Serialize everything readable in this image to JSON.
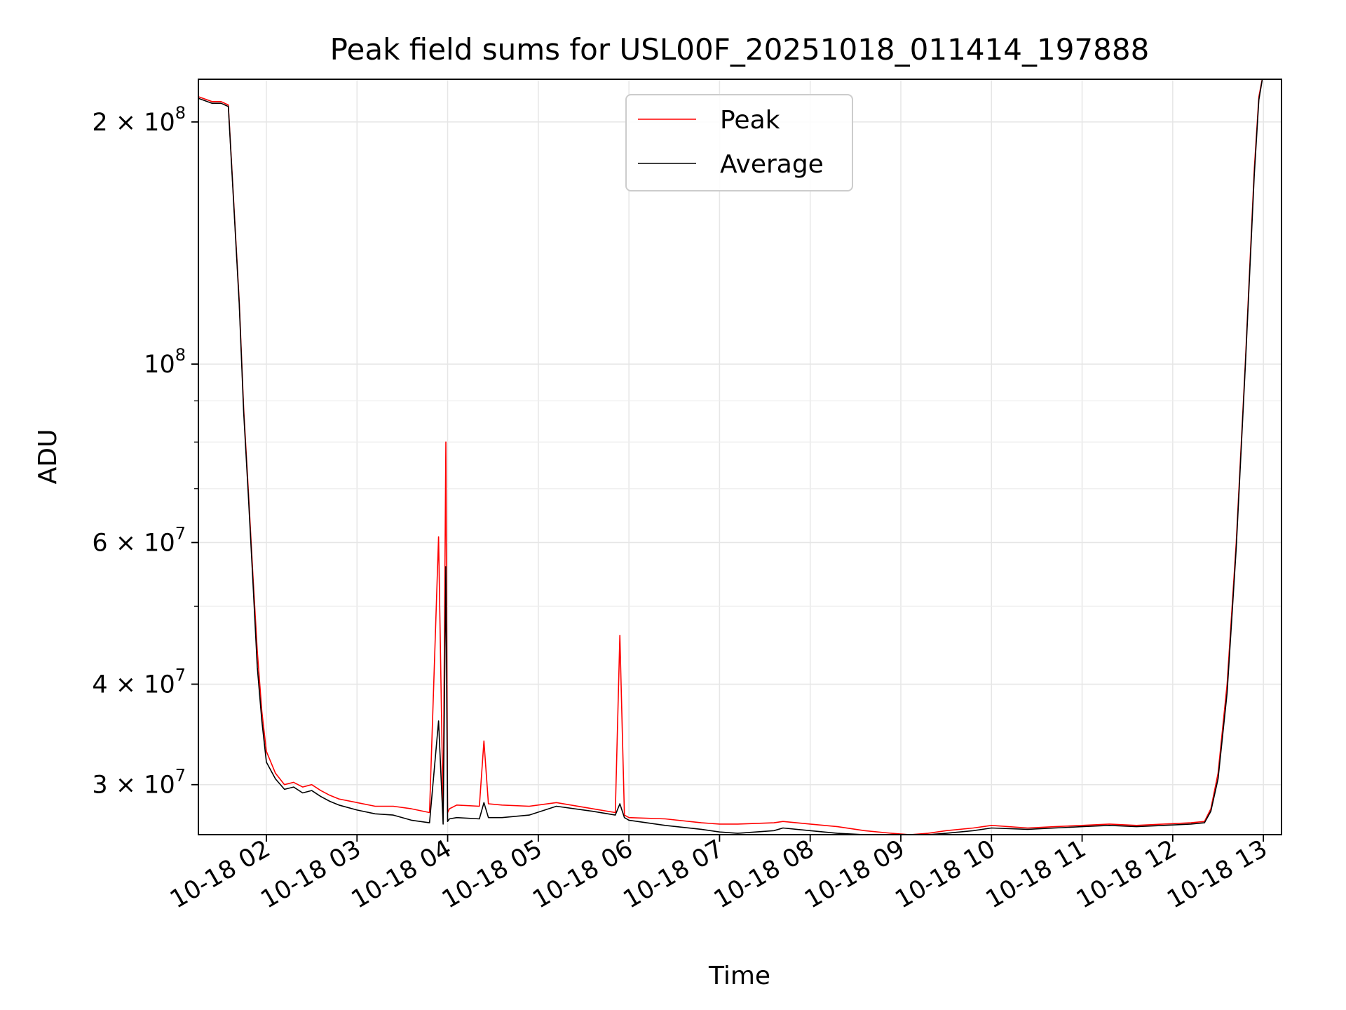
{
  "chart_data": {
    "type": "line",
    "title": "Peak field sums for USL00F_20251018_011414_197888",
    "xlabel": "Time",
    "ylabel": "ADU",
    "yscale": "log",
    "xlim": [
      1.25,
      13.2
    ],
    "ylim": [
      26000000,
      226000000
    ],
    "x_unit": "hours since 2025-10-18 00:00",
    "x_ticks": [
      {
        "value": 2,
        "label": "10-18 02"
      },
      {
        "value": 3,
        "label": "10-18 03"
      },
      {
        "value": 4,
        "label": "10-18 04"
      },
      {
        "value": 5,
        "label": "10-18 05"
      },
      {
        "value": 6,
        "label": "10-18 06"
      },
      {
        "value": 7,
        "label": "10-18 07"
      },
      {
        "value": 8,
        "label": "10-18 08"
      },
      {
        "value": 9,
        "label": "10-18 09"
      },
      {
        "value": 10,
        "label": "10-18 10"
      },
      {
        "value": 11,
        "label": "10-18 11"
      },
      {
        "value": 12,
        "label": "10-18 12"
      },
      {
        "value": 13,
        "label": "10-18 13"
      }
    ],
    "y_ticks": [
      {
        "value": 30000000,
        "base": "3 × 10",
        "exp": "7"
      },
      {
        "value": 40000000,
        "base": "4 × 10",
        "exp": "7"
      },
      {
        "value": 60000000,
        "base": "6 × 10",
        "exp": "7"
      },
      {
        "value": 100000000,
        "base": "10",
        "exp": "8"
      },
      {
        "value": 200000000,
        "base": "2 × 10",
        "exp": "8"
      }
    ],
    "y_minor_ticks": [
      50000000,
      70000000,
      80000000,
      90000000
    ],
    "grid": true,
    "legend_position": "top-center",
    "series": [
      {
        "name": "Peak",
        "color": "#ff0000",
        "x": [
          1.25,
          1.4,
          1.5,
          1.58,
          1.7,
          1.75,
          1.8,
          1.85,
          1.9,
          1.95,
          2.0,
          2.1,
          2.2,
          2.3,
          2.4,
          2.5,
          2.6,
          2.7,
          2.8,
          3.0,
          3.2,
          3.4,
          3.6,
          3.8,
          3.9,
          3.95,
          3.98,
          4.0,
          4.02,
          4.1,
          4.35,
          4.4,
          4.45,
          4.6,
          4.9,
          5.2,
          5.6,
          5.85,
          5.9,
          5.95,
          6.0,
          6.4,
          6.8,
          7.0,
          7.2,
          7.6,
          7.7,
          8.0,
          8.3,
          8.6,
          8.9,
          9.1,
          9.3,
          9.5,
          9.8,
          10.0,
          10.4,
          10.7,
          11.0,
          11.3,
          11.6,
          11.9,
          12.2,
          12.35,
          12.42,
          12.5,
          12.6,
          12.7,
          12.8,
          12.9,
          12.95,
          13.0
        ],
        "y": [
          215000000,
          212000000,
          212000000,
          210000000,
          120000000,
          88000000,
          70000000,
          55000000,
          44000000,
          37000000,
          33000000,
          31000000,
          30000000,
          30200000,
          29800000,
          30000000,
          29500000,
          29100000,
          28800000,
          28500000,
          28200000,
          28200000,
          28000000,
          27700000,
          61000000,
          27600000,
          80000000,
          27700000,
          28000000,
          28300000,
          28200000,
          34000000,
          28400000,
          28300000,
          28200000,
          28500000,
          28000000,
          27700000,
          46000000,
          27500000,
          27300000,
          27200000,
          26900000,
          26800000,
          26800000,
          26900000,
          27000000,
          26800000,
          26600000,
          26300000,
          26100000,
          26000000,
          26100000,
          26300000,
          26500000,
          26700000,
          26500000,
          26600000,
          26700000,
          26800000,
          26700000,
          26800000,
          26900000,
          27000000,
          28000000,
          31000000,
          40000000,
          60000000,
          100000000,
          175000000,
          215000000,
          230000000
        ]
      },
      {
        "name": "Average",
        "color": "#000000",
        "x": [
          1.25,
          1.4,
          1.5,
          1.58,
          1.7,
          1.75,
          1.8,
          1.85,
          1.9,
          1.95,
          2.0,
          2.1,
          2.2,
          2.3,
          2.4,
          2.5,
          2.6,
          2.7,
          2.8,
          3.0,
          3.2,
          3.4,
          3.6,
          3.8,
          3.9,
          3.95,
          3.98,
          4.0,
          4.02,
          4.1,
          4.35,
          4.4,
          4.45,
          4.6,
          4.9,
          5.2,
          5.6,
          5.85,
          5.9,
          5.95,
          6.0,
          6.4,
          6.8,
          7.0,
          7.2,
          7.6,
          7.7,
          8.0,
          8.3,
          8.6,
          8.9,
          9.1,
          9.3,
          9.5,
          9.8,
          10.0,
          10.4,
          10.7,
          11.0,
          11.3,
          11.6,
          11.9,
          12.2,
          12.35,
          12.42,
          12.5,
          12.6,
          12.7,
          12.8,
          12.9,
          12.95,
          13.0
        ],
        "y": [
          214000000,
          211000000,
          211000000,
          209000000,
          119000000,
          87000000,
          69000000,
          54000000,
          42000000,
          36000000,
          32000000,
          30500000,
          29600000,
          29800000,
          29300000,
          29500000,
          29000000,
          28600000,
          28300000,
          27900000,
          27600000,
          27500000,
          27100000,
          26900000,
          36000000,
          26800000,
          56000000,
          27000000,
          27200000,
          27300000,
          27200000,
          28500000,
          27300000,
          27300000,
          27500000,
          28200000,
          27800000,
          27500000,
          28400000,
          27300000,
          27100000,
          26700000,
          26400000,
          26200000,
          26100000,
          26300000,
          26500000,
          26300000,
          26100000,
          26000000,
          26000000,
          25900000,
          26000000,
          26100000,
          26300000,
          26500000,
          26400000,
          26500000,
          26600000,
          26700000,
          26600000,
          26700000,
          26800000,
          26900000,
          27800000,
          30500000,
          39000000,
          59000000,
          99000000,
          172000000,
          213000000,
          230000000
        ]
      }
    ]
  }
}
